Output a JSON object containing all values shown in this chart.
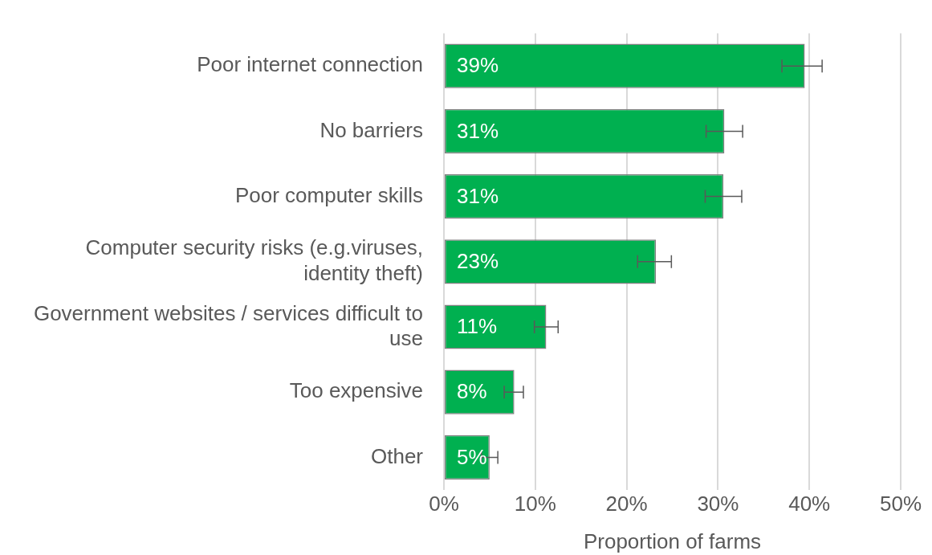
{
  "chart_data": {
    "type": "bar",
    "orientation": "horizontal",
    "xlabel": "Proportion of farms",
    "categories": [
      "Poor internet connection",
      "No barriers",
      "Poor computer skills",
      "Computer security risks (e.g.viruses, identity theft)",
      "Government websites / services difficult to use",
      "Too expensive",
      "Other"
    ],
    "values": [
      39.5,
      30.7,
      30.6,
      23.2,
      11.2,
      7.7,
      5.0
    ],
    "value_labels": [
      "39%",
      "31%",
      "31%",
      "23%",
      "11%",
      "8%",
      "5%"
    ],
    "errors": [
      [
        37.0,
        41.4
      ],
      [
        28.7,
        32.7
      ],
      [
        28.6,
        32.6
      ],
      [
        21.2,
        24.9
      ],
      [
        9.9,
        12.5
      ],
      [
        6.6,
        8.7
      ],
      [
        4.1,
        5.9
      ]
    ],
    "color": "#00b050",
    "xlim": [
      0,
      50
    ],
    "xticks": [
      {
        "value": 0,
        "label": "0%"
      },
      {
        "value": 10,
        "label": "10%"
      },
      {
        "value": 20,
        "label": "20%"
      },
      {
        "value": 30,
        "label": "30%"
      },
      {
        "value": 40,
        "label": "40%"
      },
      {
        "value": 50,
        "label": "50%"
      }
    ],
    "grid": "x",
    "legend": false
  }
}
